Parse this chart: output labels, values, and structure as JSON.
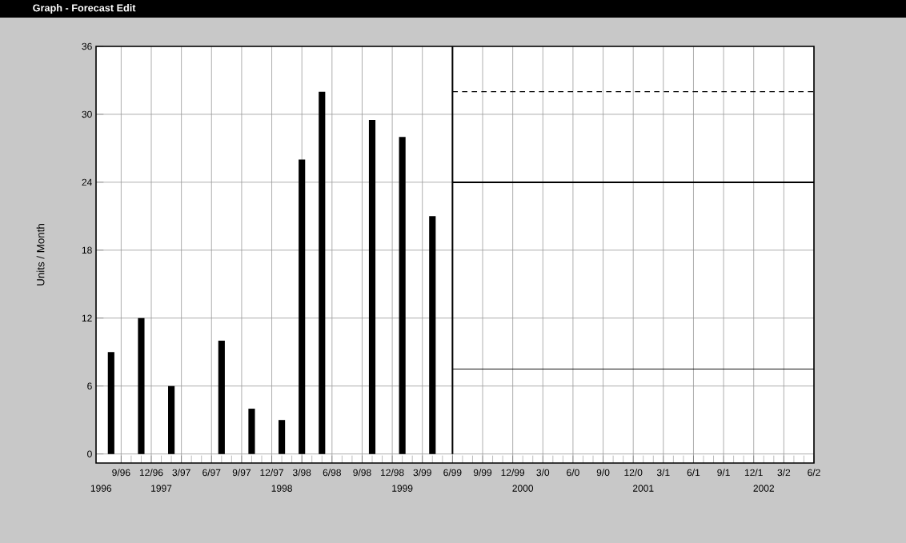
{
  "chart_data": {
    "type": "bar",
    "title": "Graph - Forecast Edit",
    "ylabel": "Units / Month",
    "xlim": [
      "1996-06-16",
      "2002-06"
    ],
    "xticks": [
      {
        "value": "1996-09",
        "label": "9/96"
      },
      {
        "value": "1996-12",
        "label": "12/96"
      },
      {
        "value": "1997-03",
        "label": "3/97"
      },
      {
        "value": "1997-06",
        "label": "6/97"
      },
      {
        "value": "1997-09",
        "label": "9/97"
      },
      {
        "value": "1997-12",
        "label": "12/97"
      },
      {
        "value": "1998-03",
        "label": "3/98"
      },
      {
        "value": "1998-06",
        "label": "6/98"
      },
      {
        "value": "1998-09",
        "label": "9/98"
      },
      {
        "value": "1998-12",
        "label": "12/98"
      },
      {
        "value": "1999-03",
        "label": "3/99"
      },
      {
        "value": "1999-06",
        "label": "6/99"
      },
      {
        "value": "1999-09",
        "label": "9/99"
      },
      {
        "value": "1999-12",
        "label": "12/99"
      },
      {
        "value": "2000-03",
        "label": "3/0"
      },
      {
        "value": "2000-06",
        "label": "6/0"
      },
      {
        "value": "2000-09",
        "label": "9/0"
      },
      {
        "value": "2000-12",
        "label": "12/0"
      },
      {
        "value": "2001-03",
        "label": "3/1"
      },
      {
        "value": "2001-06",
        "label": "6/1"
      },
      {
        "value": "2001-09",
        "label": "9/1"
      },
      {
        "value": "2001-12",
        "label": "12/1"
      },
      {
        "value": "2002-03",
        "label": "3/2"
      },
      {
        "value": "2002-06",
        "label": "6/2"
      }
    ],
    "annotations": [
      "1996",
      "1997",
      "1998",
      "1999",
      "2000",
      "2001",
      "2002"
    ],
    "ylim": [
      -0.8,
      36
    ],
    "yticks": [
      0,
      6,
      12,
      18,
      24,
      30,
      36
    ],
    "grid": true,
    "series": [
      {
        "color": "#000000",
        "x": [
          "1996-08",
          "1996-11",
          "1997-02",
          "1997-07",
          "1997-10",
          "1998-01",
          "1998-03",
          "1998-05",
          "1998-10",
          "1999-01",
          "1999-04"
        ],
        "values": [
          9,
          12,
          6,
          10,
          4,
          3,
          26,
          32,
          29.5,
          28,
          21
        ]
      },
      {
        "type": "line",
        "color": "#000000",
        "line_style": "dashed",
        "x": [
          "1999-06",
          "2002-06"
        ],
        "values": [
          32,
          32
        ]
      },
      {
        "type": "line",
        "color": "#000000",
        "line_style": "solid",
        "x": [
          "1999-06",
          "2002-06"
        ],
        "values": [
          24,
          24
        ]
      },
      {
        "type": "line",
        "color": "#000000",
        "line_style": "solid",
        "x": [
          "1999-06",
          "2002-06"
        ],
        "values": [
          7.5,
          7.5
        ]
      }
    ],
    "ref_lines": [
      {
        "axis": "x",
        "value": "1999-06",
        "color": "#000000"
      }
    ]
  }
}
